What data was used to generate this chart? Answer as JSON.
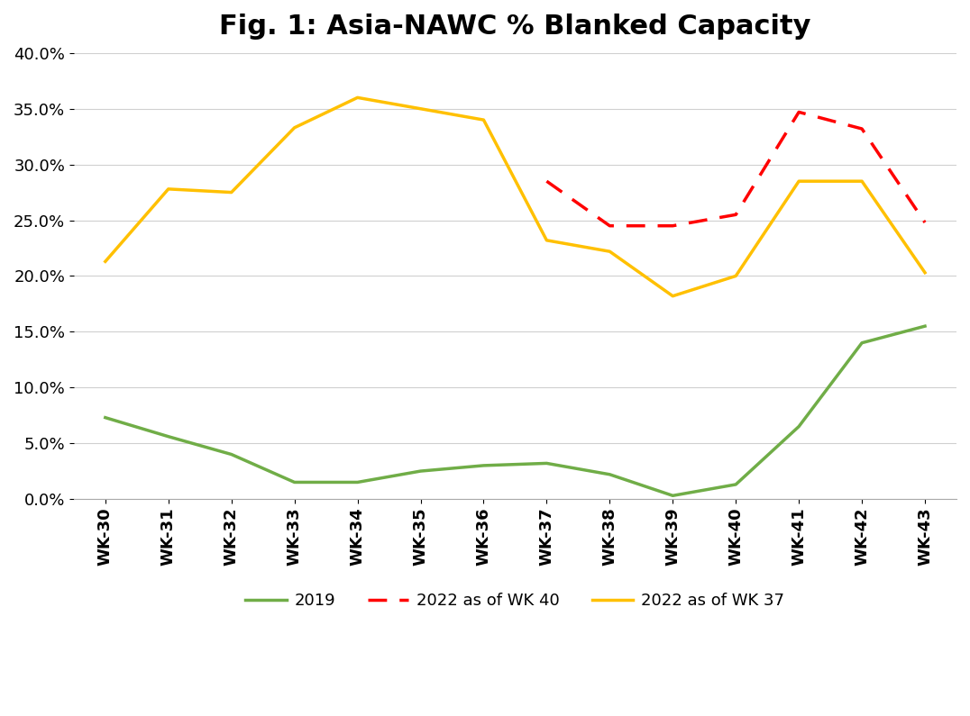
{
  "title": "Fig. 1: Asia-NAWC % Blanked Capacity",
  "categories": [
    "WK-30",
    "WK-31",
    "WK-32",
    "WK-33",
    "WK-34",
    "WK-35",
    "WK-36",
    "WK-37",
    "WK-38",
    "WK-39",
    "WK-40",
    "WK-41",
    "WK-42",
    "WK-43"
  ],
  "series_2019": [
    0.073,
    0.056,
    0.04,
    0.015,
    0.015,
    0.025,
    0.03,
    0.032,
    0.022,
    0.003,
    0.013,
    0.065,
    0.14,
    0.155
  ],
  "series_2022_wk37": [
    0.213,
    0.278,
    0.275,
    0.333,
    0.36,
    0.35,
    0.34,
    0.232,
    0.222,
    0.182,
    0.2,
    0.285,
    0.285,
    0.203
  ],
  "series_2022_wk40": [
    null,
    null,
    null,
    null,
    null,
    null,
    null,
    0.285,
    0.245,
    0.245,
    0.255,
    0.347,
    0.332,
    0.248
  ],
  "color_2019": "#70ad47",
  "color_2022_wk37": "#ffc000",
  "color_2022_wk40": "#ff0000",
  "legend_2019": "2019",
  "legend_wk40": "2022 as of WK 40",
  "legend_wk37": "2022 as of WK 37",
  "ylim": [
    0.0,
    0.4
  ],
  "yticks": [
    0.0,
    0.05,
    0.1,
    0.15,
    0.2,
    0.25,
    0.3,
    0.35,
    0.4
  ],
  "title_fontsize": 22,
  "background_color": "#ffffff",
  "grid_color": "#d0d0d0"
}
